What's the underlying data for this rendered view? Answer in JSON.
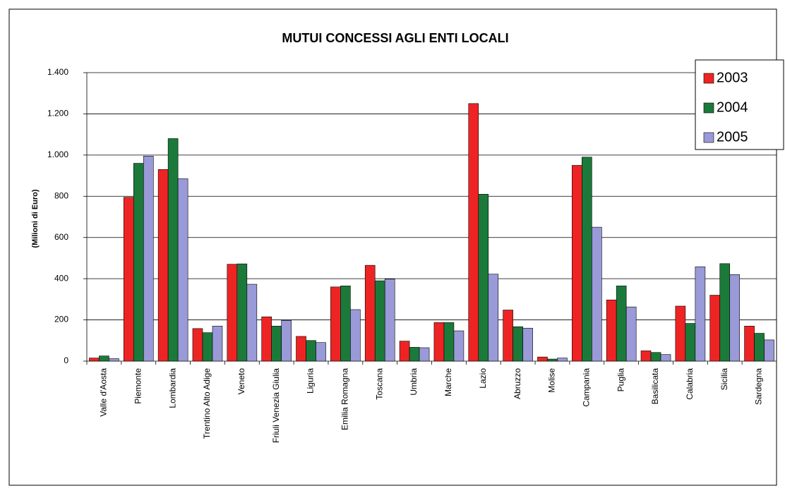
{
  "chart_data": {
    "type": "bar",
    "title": "MUTUI CONCESSI AGLI ENTI LOCALI",
    "y_label": "(Milioni di Euro)",
    "categories": [
      "Valle d'Aosta",
      "Piemonte",
      "Lombardia",
      "Trentino Alto Adige",
      "Veneto",
      "Friuli Venezia Giulia",
      "Liguria",
      "Emilia Romagna",
      "Toscana",
      "Umbria",
      "Marche",
      "Lazio",
      "Abruzzo",
      "Molise",
      "Campania",
      "Puglia",
      "Basilicata",
      "Calabria",
      "Sicilia",
      "Sardegna"
    ],
    "series": [
      {
        "name": "2003",
        "color": "#ee2424",
        "values": [
          15,
          795,
          930,
          158,
          470,
          215,
          120,
          360,
          465,
          97,
          187,
          1250,
          248,
          20,
          950,
          297,
          50,
          267,
          320,
          170
        ]
      },
      {
        "name": "2004",
        "color": "#1b7a3a",
        "values": [
          25,
          960,
          1080,
          138,
          472,
          170,
          100,
          365,
          390,
          67,
          187,
          810,
          167,
          10,
          990,
          365,
          42,
          183,
          473,
          135
        ]
      },
      {
        "name": "2005",
        "color": "#9a9ad8",
        "values": [
          12,
          995,
          885,
          170,
          373,
          197,
          90,
          250,
          398,
          65,
          147,
          422,
          160,
          15,
          650,
          263,
          32,
          458,
          420,
          103
        ]
      }
    ],
    "ylim": [
      0,
      1400
    ],
    "yticks": [
      0,
      200,
      400,
      600,
      800,
      {
        "value": 1000,
        "label": "1.000"
      },
      {
        "value": 1200,
        "label": "1.200"
      },
      {
        "value": 1400,
        "label": "1.400"
      }
    ],
    "grid": true,
    "legend": "top-right"
  }
}
